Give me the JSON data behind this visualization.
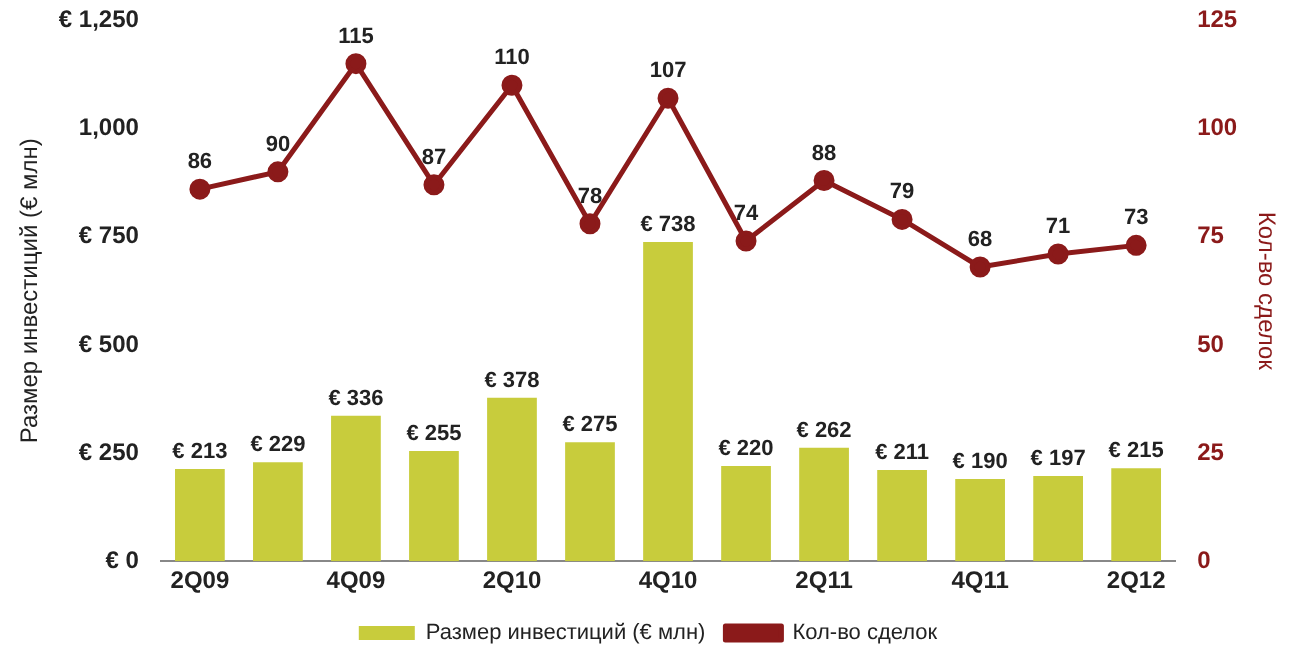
{
  "chart_data": {
    "type": "bar",
    "ylabel": "Размер инвестиций (€ млн)",
    "y2label": "Кол-во сделок",
    "categories": [
      "2Q09",
      null,
      "4Q09",
      null,
      "2Q10",
      null,
      "4Q10",
      null,
      "2Q11",
      null,
      "4Q11",
      null,
      "2Q12"
    ],
    "series": [
      {
        "name": "Размер инвестиций (€ млн)",
        "color": "#c8cc3c",
        "values": [
          213,
          229,
          336,
          255,
          378,
          275,
          738,
          220,
          262,
          211,
          190,
          197,
          215
        ],
        "value_labels": [
          "€ 213",
          "€ 229",
          "€ 336",
          "€ 255",
          "€ 378",
          "€ 275",
          "€ 738",
          "€ 220",
          "€ 262",
          "€ 211",
          "€ 190",
          "€ 197",
          "€ 215"
        ]
      },
      {
        "name": "Кол-во сделок",
        "type": "line",
        "axis": "y2",
        "color": "#8b1a1a",
        "marker": "circle",
        "values": [
          86,
          90,
          115,
          87,
          110,
          78,
          107,
          74,
          88,
          79,
          68,
          71,
          73
        ],
        "value_labels": [
          "86",
          "90",
          "115",
          "87",
          "110",
          "78",
          "107",
          "74",
          "88",
          "79",
          "68",
          "71",
          "73"
        ]
      }
    ],
    "ylim": [
      0,
      1250
    ],
    "yticks": [
      {
        "value": 0,
        "label": "€ 0"
      },
      {
        "value": 250,
        "label": "€ 250"
      },
      {
        "value": 500,
        "label": "€ 500"
      },
      {
        "value": 750,
        "label": "€ 750"
      },
      {
        "value": 1000,
        "label": "1,000"
      },
      {
        "value": 1250,
        "label": "€ 1,250"
      }
    ],
    "y2lim": [
      0,
      125
    ],
    "y2ticks": [
      0,
      25,
      50,
      75,
      100,
      125
    ],
    "grid": false,
    "legend": "bottom"
  }
}
